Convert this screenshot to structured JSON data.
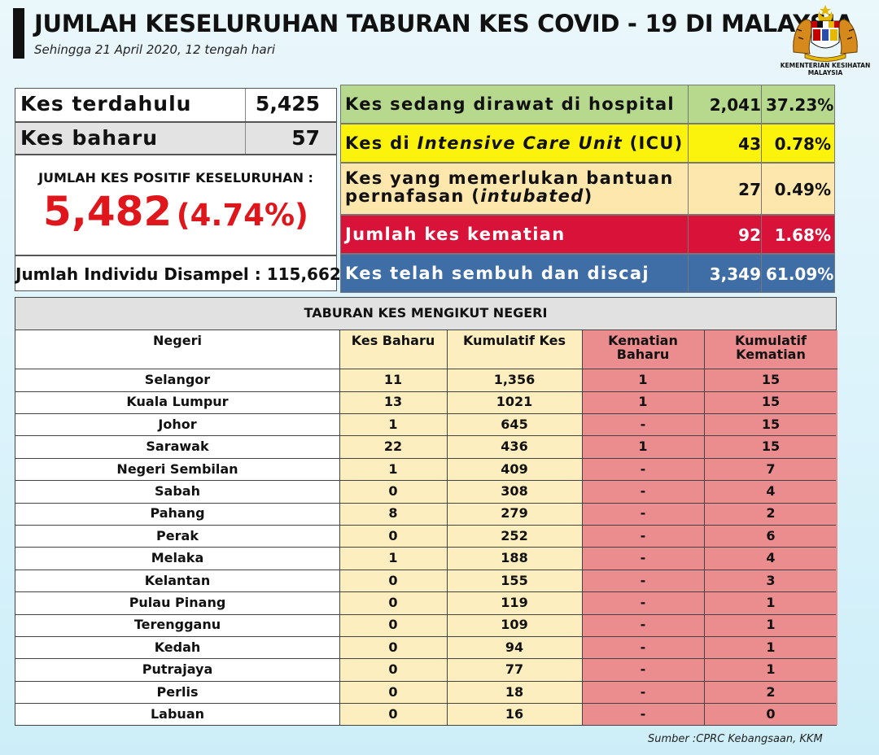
{
  "header": {
    "title": "JUMLAH KESELURUHAN TABURAN KES COVID - 19 DI MALAYSIA",
    "subtitle": "Sehingga 21 April 2020, 12 tengah hari",
    "logo_text_1": "KEMENTERIAN KESIHATAN",
    "logo_text_2": "MALAYSIA"
  },
  "summary": {
    "prev_label": "Kes terdahulu",
    "prev_value": "5,425",
    "new_label": "Kes baharu",
    "new_value": "57",
    "total_label": "JUMLAH KES POSITIF KESELURUHAN :",
    "total_value": "5,482",
    "total_pct": "(4.74%)",
    "sample_label": "Jumlah Individu Disampel : 115,662"
  },
  "status": {
    "hospital": {
      "label": "Kes sedang dirawat di hospital",
      "count": "2,041",
      "pct": "37.23%"
    },
    "icu": {
      "label_a": "Kes di ",
      "label_b": "Intensive Care Unit",
      "label_c": " (ICU)",
      "count": "43",
      "pct": "0.78%"
    },
    "intubated": {
      "label_1": "Kes yang memerlukan bantuan",
      "label_2a": "pernafasan (",
      "label_2b": "intubated",
      "label_2c": ")",
      "count": "27",
      "pct": "0.49%"
    },
    "deaths": {
      "label": "Jumlah kes kematian",
      "count": "92",
      "pct": "1.68%"
    },
    "discharged": {
      "label": "Kes telah sembuh dan discaj",
      "count": "3,349",
      "pct": "61.09%"
    }
  },
  "colors": {
    "hospital": "#b6d98d",
    "icu": "#fcf30c",
    "intubated": "#fde7ad",
    "deaths": "#d9123a",
    "discharged": "#3f6ea6",
    "total_red": "#e0161d"
  },
  "table": {
    "title": "TABURAN KES MENGIKUT NEGERI",
    "headers": [
      "Negeri",
      "Kes Baharu",
      "Kumulatif Kes",
      "Kematian Baharu",
      "Kumulatif Kematian"
    ],
    "header_lines": {
      "h3a": "Kematian",
      "h3b": "Baharu",
      "h4a": "Kumulatif",
      "h4b": "Kematian"
    },
    "rows": [
      [
        "Selangor",
        "11",
        "1,356",
        "1",
        "15"
      ],
      [
        "Kuala Lumpur",
        "13",
        "1021",
        "1",
        "15"
      ],
      [
        "Johor",
        "1",
        "645",
        "-",
        "15"
      ],
      [
        "Sarawak",
        "22",
        "436",
        "1",
        "15"
      ],
      [
        "Negeri Sembilan",
        "1",
        "409",
        "-",
        "7"
      ],
      [
        "Sabah",
        "0",
        "308",
        "-",
        "4"
      ],
      [
        "Pahang",
        "8",
        "279",
        "-",
        "2"
      ],
      [
        "Perak",
        "0",
        "252",
        "-",
        "6"
      ],
      [
        "Melaka",
        "1",
        "188",
        "-",
        "4"
      ],
      [
        "Kelantan",
        "0",
        "155",
        "-",
        "3"
      ],
      [
        "Pulau Pinang",
        "0",
        "119",
        "-",
        "1"
      ],
      [
        "Terengganu",
        "0",
        "109",
        "-",
        "1"
      ],
      [
        "Kedah",
        "0",
        "94",
        "-",
        "1"
      ],
      [
        "Putrajaya",
        "0",
        "77",
        "-",
        "1"
      ],
      [
        "Perlis",
        "0",
        "18",
        "-",
        "2"
      ],
      [
        "Labuan",
        "0",
        "16",
        "-",
        "0"
      ]
    ]
  },
  "footer": {
    "source": "Sumber :CPRC Kebangsaan,  KKM"
  }
}
